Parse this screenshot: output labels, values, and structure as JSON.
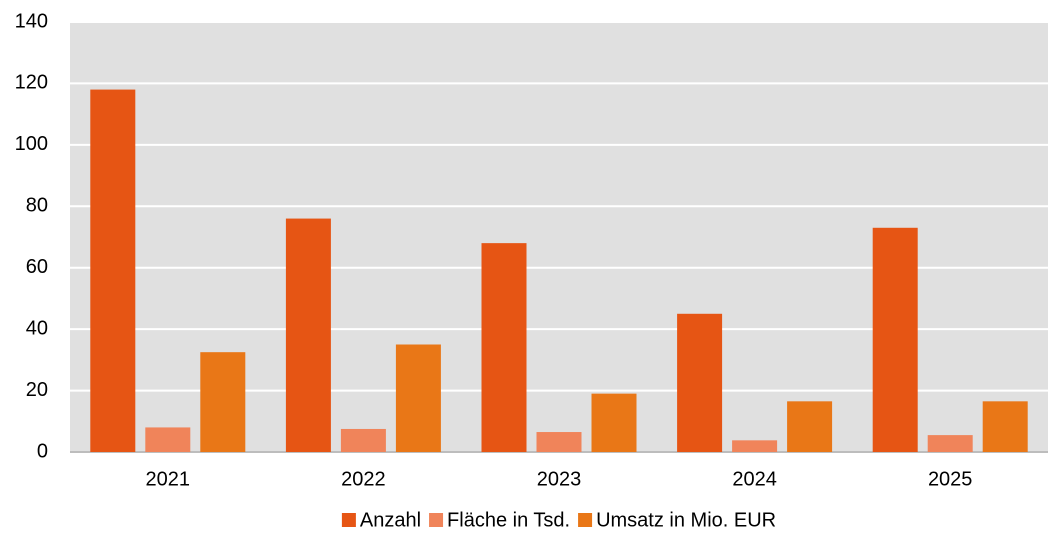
{
  "chart_data": {
    "type": "bar",
    "categories": [
      "2021",
      "2022",
      "2023",
      "2024",
      "2025"
    ],
    "series": [
      {
        "name": "Anzahl",
        "color": "#e65514",
        "values": [
          118,
          76,
          68,
          45,
          73
        ]
      },
      {
        "name": "Fläche in Tsd.",
        "color": "#f0845a",
        "values": [
          8,
          7.5,
          6.5,
          3.8,
          5.5
        ]
      },
      {
        "name": "Umsatz in Mio. EUR",
        "color": "#e97717",
        "values": [
          32.5,
          35,
          19,
          16.5,
          16.5
        ]
      }
    ],
    "ylim": [
      0,
      140
    ],
    "yticks": [
      0,
      20,
      40,
      60,
      80,
      100,
      120,
      140
    ],
    "grid": true,
    "legend": "bottom"
  }
}
